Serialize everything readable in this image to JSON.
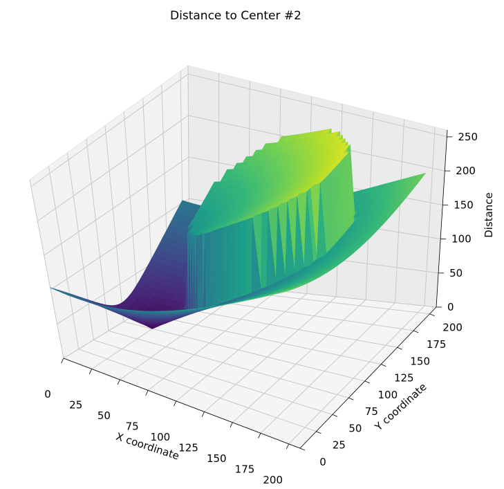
{
  "chart_data": {
    "type": "surface3d",
    "title": "Distance to Center #2",
    "xlabel": "X coordinate",
    "ylabel": "Y coordinate",
    "zlabel": "Distance",
    "x_ticks": [
      "0",
      "25",
      "50",
      "75",
      "100",
      "125",
      "150",
      "175",
      "200"
    ],
    "y_ticks": [
      "0",
      "25",
      "50",
      "75",
      "100",
      "125",
      "150",
      "175",
      "200"
    ],
    "z_ticks": [
      "0",
      "50",
      "100",
      "150",
      "200",
      "250"
    ],
    "xlim": [
      0,
      210
    ],
    "ylim": [
      0,
      210
    ],
    "zlim": [
      0,
      260
    ],
    "colormap": "viridis",
    "grid": true,
    "surface": {
      "center": [
        25,
        100
      ],
      "disk_center": [
        105,
        140
      ],
      "disk_radius": 60,
      "disk_offset": 100,
      "grid_step": 5
    }
  }
}
